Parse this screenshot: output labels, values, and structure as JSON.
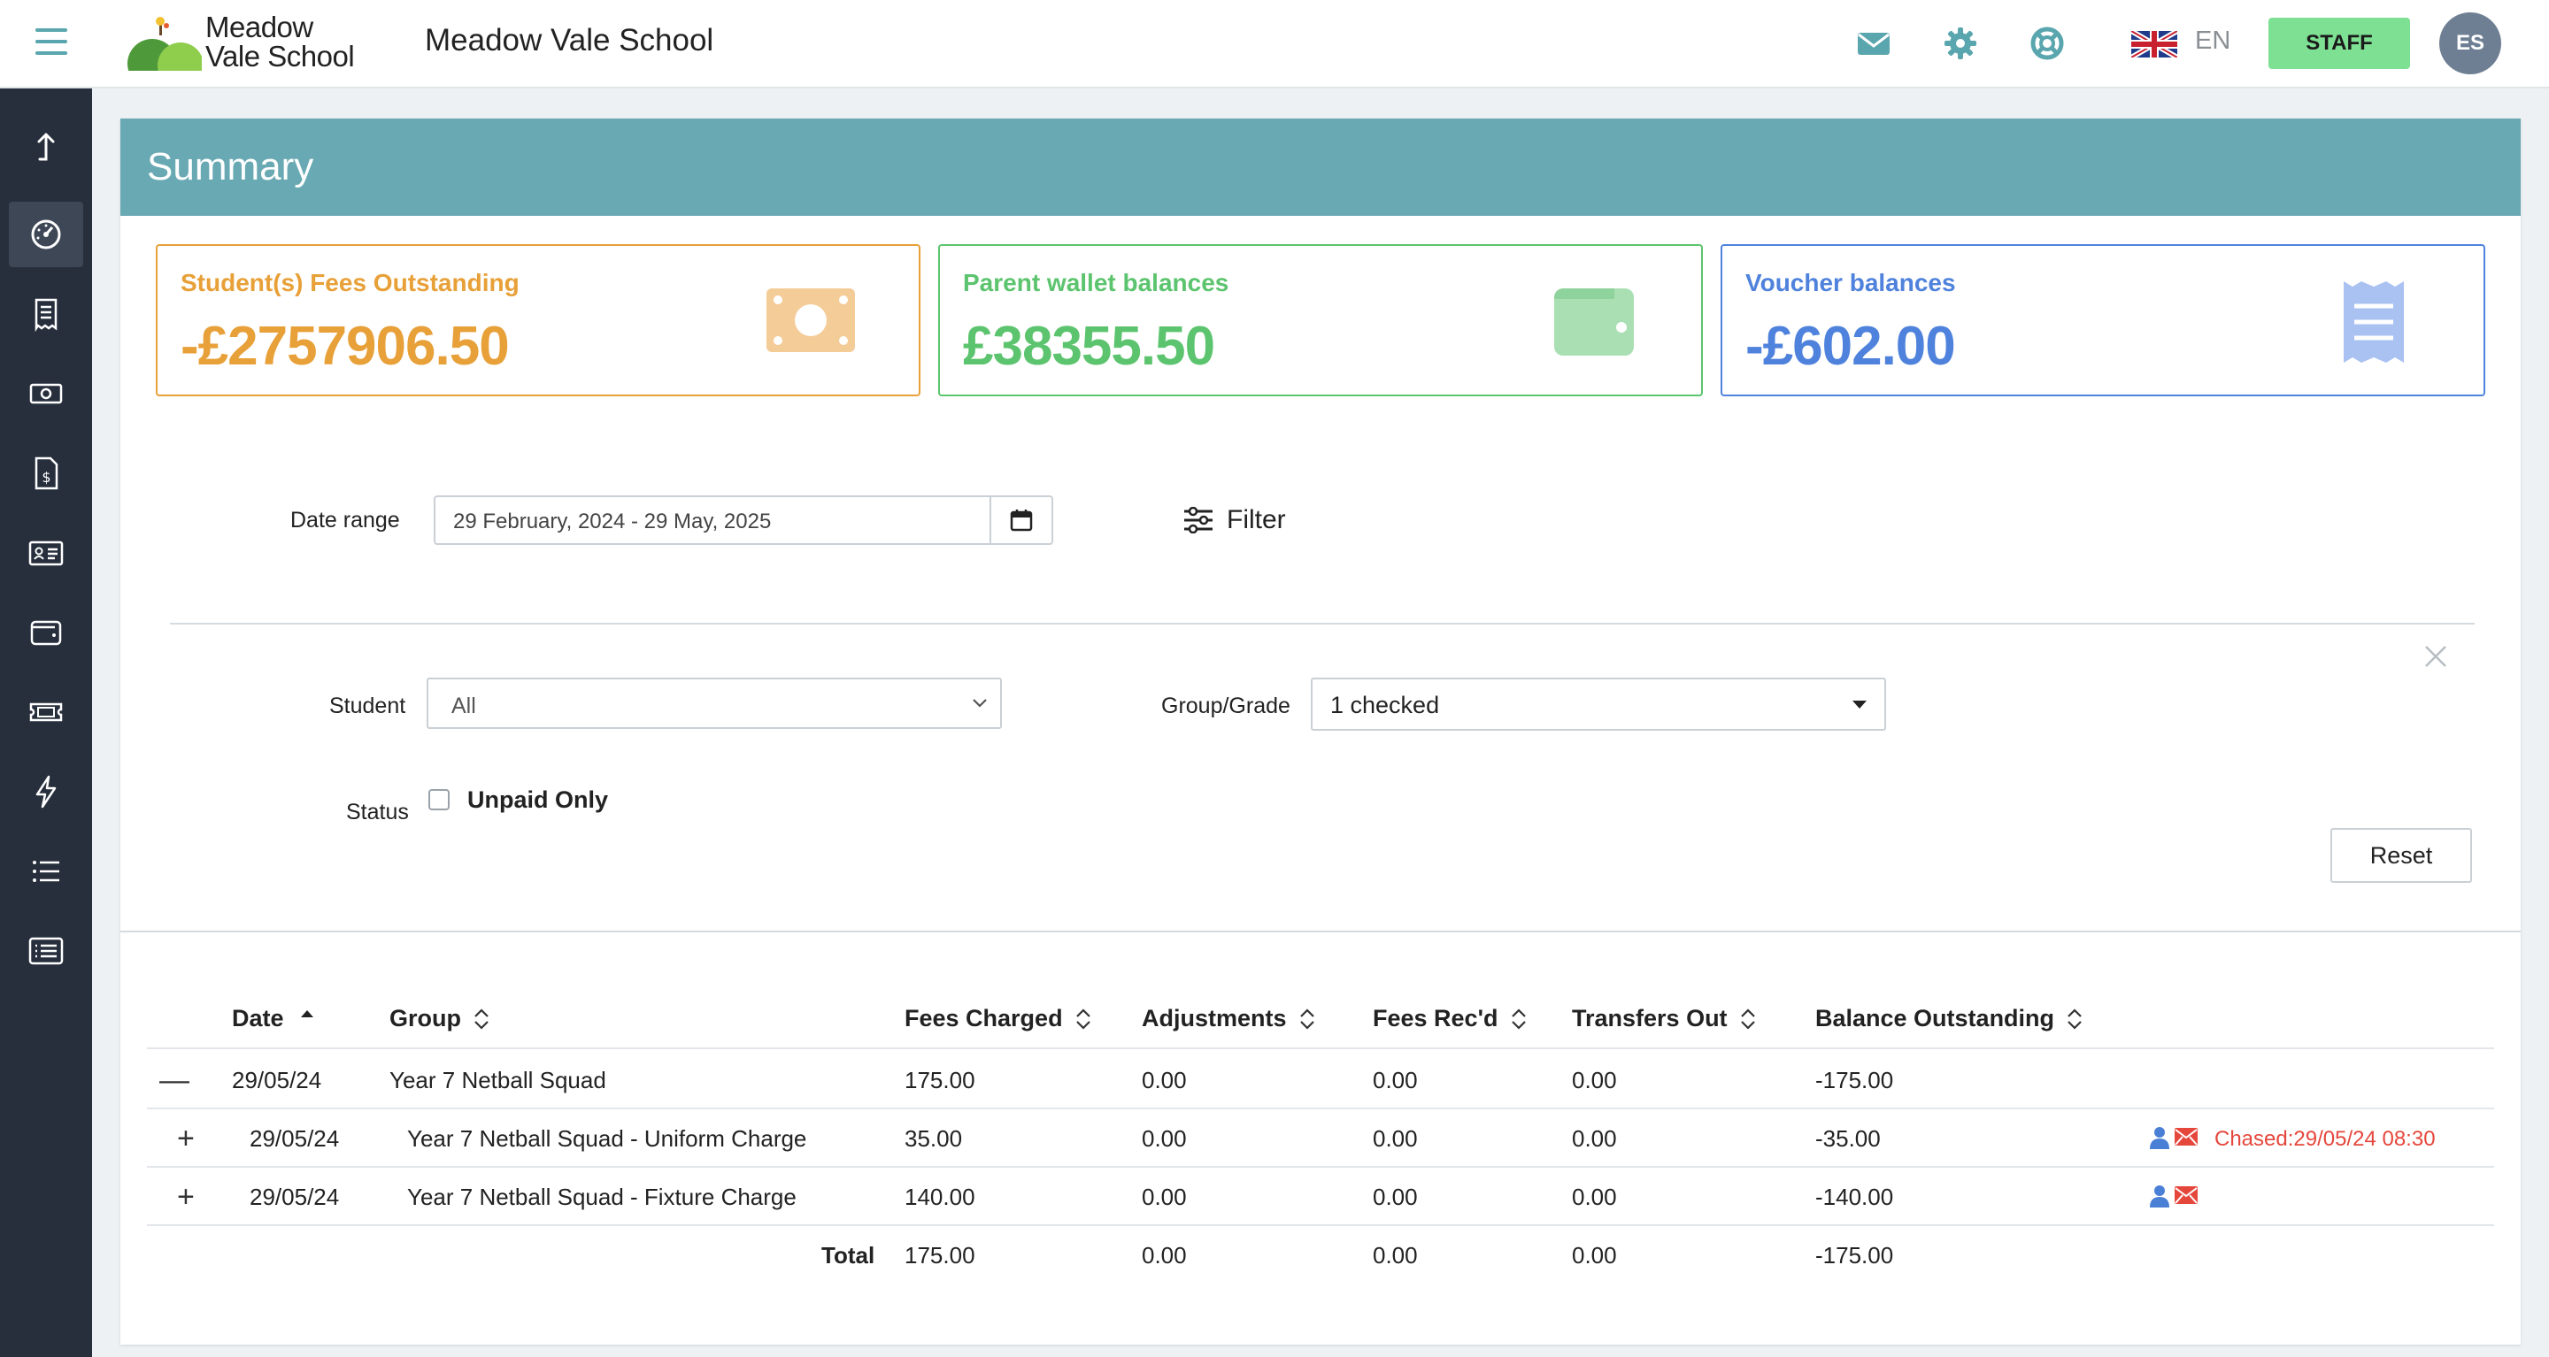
{
  "header": {
    "logo_line1": "Meadow",
    "logo_line2": "Vale School",
    "school_name": "Meadow Vale School",
    "language": "EN",
    "staff_label": "STAFF",
    "avatar_initials": "ES"
  },
  "icons": {
    "top": [
      "mail-icon",
      "settings-icon",
      "help-lifebuoy-icon",
      "uk-flag-icon"
    ],
    "sidebar": [
      "upload-arrow-icon",
      "dashboard-gauge-icon",
      "receipt-icon",
      "cash-icon",
      "invoice-dollar-icon",
      "id-card-icon",
      "wallet-icon",
      "ticket-icon",
      "lightning-icon",
      "list-icon",
      "list-alt-icon"
    ]
  },
  "summary": {
    "title": "Summary",
    "cards": [
      {
        "label": "Student(s) Fees Outstanding",
        "value": "-£2757906.50",
        "color": "#e8a038",
        "icon": "money-bill-icon"
      },
      {
        "label": "Parent wallet balances",
        "value": "£38355.50",
        "color": "#5cc46e",
        "icon": "wallet-icon"
      },
      {
        "label": "Voucher balances",
        "value": "-£602.00",
        "color": "#4f82dc",
        "icon": "receipt-voucher-icon"
      }
    ]
  },
  "filters": {
    "date_range_label": "Date range",
    "date_range_value": "29 February, 2024 - 29 May, 2025",
    "filter_label": "Filter",
    "student_label": "Student",
    "student_value": "All",
    "group_label": "Group/Grade",
    "group_value": "1 checked",
    "status_label": "Status",
    "unpaid_label": "Unpaid Only",
    "unpaid_checked": false,
    "reset_label": "Reset"
  },
  "table": {
    "headers": {
      "date": "Date",
      "group": "Group",
      "fees_charged": "Fees Charged",
      "adjustments": "Adjustments",
      "fees_recd": "Fees Rec'd",
      "transfers_out": "Transfers Out",
      "balance": "Balance Outstanding"
    },
    "rows": [
      {
        "toggle": "—",
        "date": "29/05/24",
        "group": "Year 7 Netball Squad",
        "fees_charged": "175.00",
        "adjustments": "0.00",
        "fees_recd": "0.00",
        "transfers_out": "0.00",
        "balance": "-175.00",
        "chased": ""
      },
      {
        "toggle": "+",
        "date": "29/05/24",
        "group": "Year 7 Netball Squad - Uniform Charge",
        "fees_charged": "35.00",
        "adjustments": "0.00",
        "fees_recd": "0.00",
        "transfers_out": "0.00",
        "balance": "-35.00",
        "chased": "Chased:29/05/24 08:30"
      },
      {
        "toggle": "+",
        "date": "29/05/24",
        "group": "Year 7 Netball Squad - Fixture Charge",
        "fees_charged": "140.00",
        "adjustments": "0.00",
        "fees_recd": "0.00",
        "transfers_out": "0.00",
        "balance": "-140.00",
        "chased": ""
      }
    ],
    "total": {
      "label": "Total",
      "fees_charged": "175.00",
      "adjustments": "0.00",
      "fees_recd": "0.00",
      "transfers_out": "0.00",
      "balance": "-175.00"
    }
  }
}
